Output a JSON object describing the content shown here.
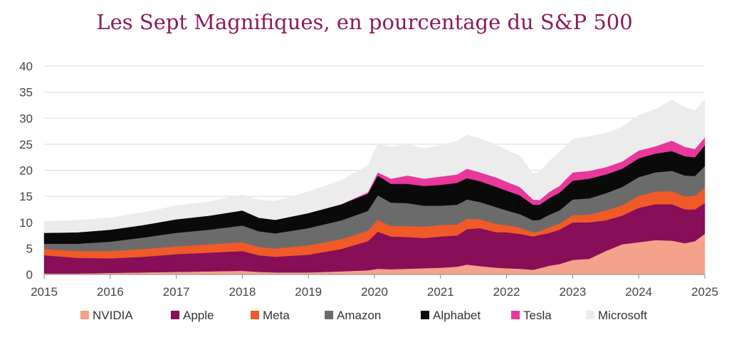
{
  "chart_data": {
    "type": "area",
    "stacked": true,
    "title": "Les Sept Magnifiques, en pourcentage du S&P 500",
    "xlabel": "",
    "ylabel": "",
    "xlim": [
      2015,
      2025
    ],
    "ylim": [
      0,
      40
    ],
    "yticks": [
      0,
      5,
      10,
      15,
      20,
      25,
      30,
      35,
      40
    ],
    "xticks": [
      2015,
      2016,
      2017,
      2018,
      2019,
      2020,
      2021,
      2022,
      2023,
      2024,
      2025
    ],
    "x": [
      2015.0,
      2015.5,
      2016.0,
      2016.5,
      2017.0,
      2017.5,
      2018.0,
      2018.25,
      2018.5,
      2019.0,
      2019.5,
      2019.9,
      2020.05,
      2020.25,
      2020.5,
      2020.75,
      2021.0,
      2021.25,
      2021.4,
      2021.6,
      2021.85,
      2022.0,
      2022.2,
      2022.4,
      2022.5,
      2022.65,
      2022.8,
      2023.0,
      2023.25,
      2023.5,
      2023.75,
      2024.0,
      2024.25,
      2024.5,
      2024.7,
      2024.85,
      2025.0
    ],
    "series": [
      {
        "name": "NVIDIA",
        "color": "#f4a28c",
        "values": [
          0.2,
          0.2,
          0.3,
          0.4,
          0.5,
          0.6,
          0.7,
          0.5,
          0.4,
          0.4,
          0.6,
          0.8,
          1.1,
          1.0,
          1.1,
          1.2,
          1.3,
          1.5,
          1.9,
          1.6,
          1.3,
          1.2,
          1.1,
          0.9,
          1.2,
          1.7,
          2.0,
          2.8,
          3.0,
          4.5,
          5.8,
          6.2,
          6.6,
          6.5,
          6.0,
          6.4,
          7.8
        ]
      },
      {
        "name": "Apple",
        "color": "#880e58",
        "values": [
          3.5,
          3.0,
          2.8,
          3.0,
          3.4,
          3.6,
          3.8,
          3.2,
          3.0,
          3.4,
          4.3,
          5.6,
          7.1,
          6.3,
          6.1,
          5.8,
          6.0,
          6.0,
          6.8,
          7.3,
          6.8,
          6.9,
          6.7,
          6.4,
          6.4,
          6.3,
          6.6,
          7.2,
          7.0,
          5.9,
          5.5,
          6.6,
          6.9,
          7.0,
          6.5,
          6.1,
          5.9
        ]
      },
      {
        "name": "Meta",
        "color": "#ef5a28",
        "values": [
          1.2,
          1.3,
          1.4,
          1.5,
          1.5,
          1.6,
          1.7,
          1.6,
          1.6,
          1.8,
          1.9,
          2.0,
          2.3,
          2.0,
          2.1,
          2.2,
          2.2,
          2.1,
          2.0,
          1.7,
          1.6,
          1.4,
          1.2,
          0.8,
          0.7,
          1.1,
          1.2,
          1.4,
          1.5,
          1.9,
          2.0,
          2.3,
          2.4,
          2.5,
          2.5,
          2.6,
          3.0
        ]
      },
      {
        "name": "Amazon",
        "color": "#6b6b6b",
        "values": [
          1.0,
          1.4,
          1.8,
          2.2,
          2.6,
          2.8,
          3.2,
          3.0,
          2.9,
          3.3,
          3.6,
          3.8,
          4.7,
          4.5,
          4.4,
          4.0,
          3.7,
          3.8,
          3.7,
          3.3,
          3.2,
          2.8,
          2.6,
          2.3,
          2.2,
          2.4,
          2.5,
          3.0,
          3.1,
          3.3,
          3.5,
          3.6,
          3.7,
          3.9,
          4.0,
          3.8,
          4.1
        ]
      },
      {
        "name": "Alphabet",
        "color": "#0a0a0a",
        "values": [
          2.1,
          2.2,
          2.3,
          2.4,
          2.6,
          2.7,
          2.9,
          2.6,
          2.6,
          2.9,
          3.1,
          3.3,
          3.8,
          3.6,
          3.7,
          3.8,
          4.0,
          4.2,
          4.1,
          4.0,
          3.9,
          3.8,
          3.6,
          3.0,
          2.9,
          3.2,
          3.4,
          3.6,
          3.8,
          3.6,
          3.5,
          3.6,
          3.6,
          3.8,
          3.7,
          3.6,
          4.0
        ]
      },
      {
        "name": "Tesla",
        "color": "#e8389c",
        "values": [
          0.0,
          0.0,
          0.0,
          0.0,
          0.0,
          0.0,
          0.0,
          0.0,
          0.0,
          0.0,
          0.0,
          0.3,
          0.6,
          1.0,
          1.6,
          1.4,
          1.6,
          1.6,
          1.8,
          1.7,
          1.8,
          1.7,
          1.6,
          1.0,
          0.9,
          1.2,
          1.3,
          1.6,
          1.5,
          1.4,
          1.4,
          1.5,
          1.4,
          2.0,
          1.8,
          1.6,
          1.5
        ]
      },
      {
        "name": "Microsoft",
        "color": "#ececec",
        "values": [
          2.2,
          2.3,
          2.3,
          2.4,
          2.6,
          2.7,
          3.0,
          3.4,
          3.6,
          4.1,
          4.6,
          5.1,
          5.4,
          6.1,
          6.0,
          5.8,
          6.0,
          6.4,
          6.5,
          6.5,
          6.2,
          6.1,
          6.0,
          5.0,
          5.4,
          5.9,
          6.5,
          6.4,
          6.6,
          6.5,
          6.6,
          6.8,
          7.1,
          7.8,
          7.6,
          7.4,
          7.3
        ]
      }
    ]
  }
}
